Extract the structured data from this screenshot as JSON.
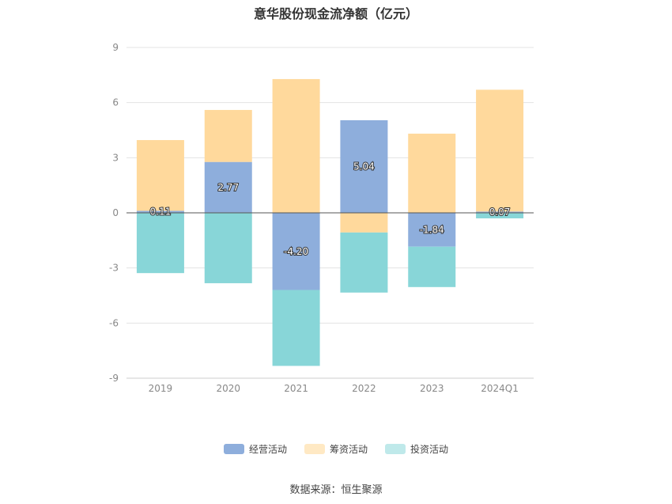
{
  "title": "意华股份现金流净额（亿元）",
  "source": "数据来源：恒生聚源",
  "chart_data": {
    "type": "bar",
    "stacked": true,
    "categories": [
      "2019",
      "2020",
      "2021",
      "2022",
      "2023",
      "2024Q1"
    ],
    "ylim": [
      -9,
      9
    ],
    "yticks": [
      9,
      6,
      3,
      0,
      -3,
      -6,
      -9
    ],
    "grid": true,
    "legend_position": "bottom",
    "series": [
      {
        "name": "经营活动",
        "color": "#8eaedc",
        "values": [
          0.11,
          2.77,
          -4.2,
          5.04,
          -1.84,
          0.07
        ],
        "labels": [
          "0.11",
          "2.77",
          "-4.20",
          "5.04",
          "-1.84",
          "0.07"
        ]
      },
      {
        "name": "筹资活动",
        "color": "#ffd99c",
        "values": [
          3.85,
          2.83,
          7.28,
          -1.07,
          4.31,
          6.63
        ]
      },
      {
        "name": "投资活动",
        "color": "#88d6d8",
        "values": [
          -3.28,
          -3.83,
          -4.13,
          -3.27,
          -2.2,
          -0.3
        ]
      }
    ]
  }
}
